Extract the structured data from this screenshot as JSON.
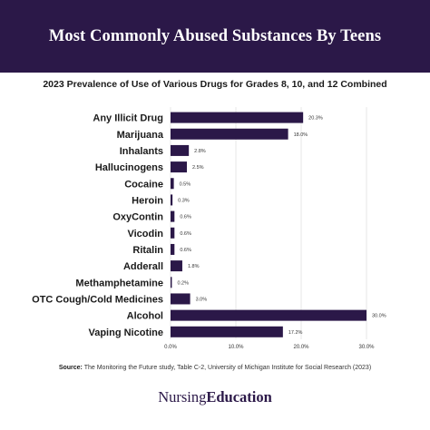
{
  "header": {
    "title": "Most Commonly Abused Substances By Teens"
  },
  "colors": {
    "bar": "#2b1848",
    "header_bg": "#2b1848"
  },
  "chart_data": {
    "type": "bar",
    "orientation": "horizontal",
    "title": "2023 Prevalence of Use of Various Drugs for Grades 8, 10, and 12 Combined",
    "categories": [
      "Any Illicit Drug",
      "Marijuana",
      "Inhalants",
      "Hallucinogens",
      "Cocaine",
      "Heroin",
      "OxyContin",
      "Vicodin",
      "Ritalin",
      "Adderall",
      "Methamphetamine",
      "OTC Cough/Cold Medicines",
      "Alcohol",
      "Vaping Nicotine"
    ],
    "values": [
      20.3,
      18.0,
      2.8,
      2.5,
      0.5,
      0.3,
      0.6,
      0.6,
      0.6,
      1.8,
      0.2,
      3.0,
      30.0,
      17.2
    ],
    "value_labels": [
      "20.3%",
      "18.0%",
      "2.8%",
      "2.5%",
      "0.5%",
      "0.3%",
      "0.6%",
      "0.6%",
      "0.6%",
      "1.8%",
      "0.2%",
      "3.0%",
      "30.0%",
      "17.2%"
    ],
    "xticks": [
      0,
      10,
      20,
      30
    ],
    "xtick_labels": [
      "0.0%",
      "10.0%",
      "20.0%",
      "30.0%"
    ],
    "xlim": [
      0,
      30
    ],
    "xlabel": "",
    "ylabel": "",
    "grid": true
  },
  "source": {
    "label": "Source:",
    "text": "The Monitoring the Future study, Table C-2, University of Michigan Institute for Social Research (2023)"
  },
  "logo": {
    "part1": "Nursing",
    "part2": "Education"
  }
}
